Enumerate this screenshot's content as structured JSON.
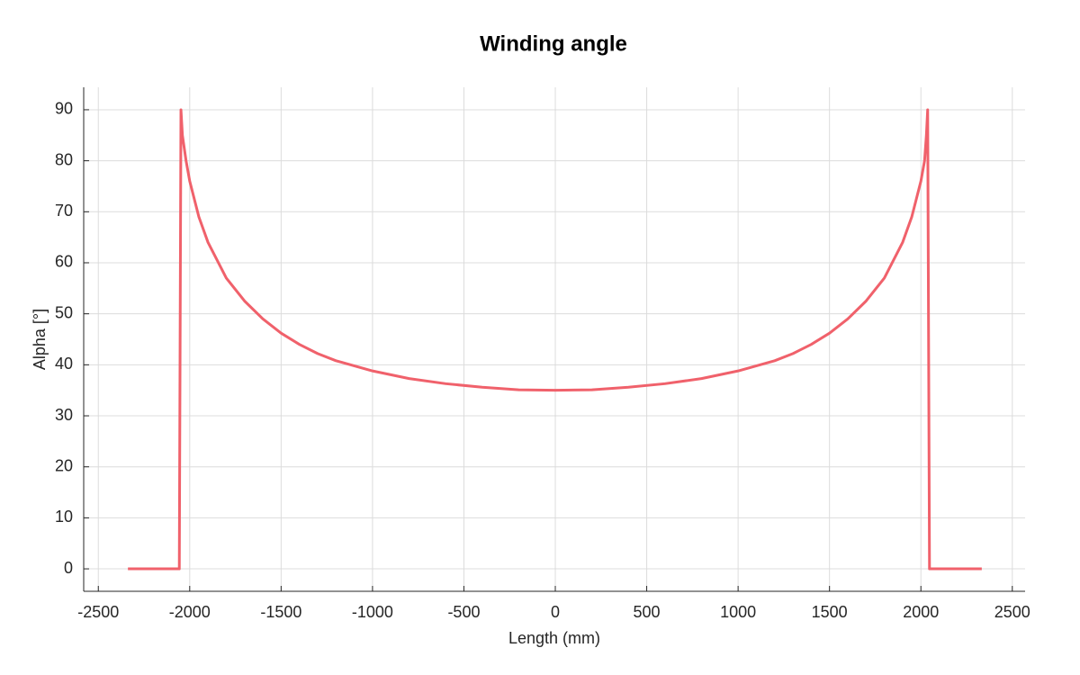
{
  "chart_data": {
    "type": "line",
    "title": "Winding angle",
    "x_label": "Length (mm)",
    "y_label": "Alpha [°]",
    "x": [
      -2338,
      -2057,
      -2048,
      -2040,
      -2020,
      -2000,
      -1950,
      -1900,
      -1800,
      -1700,
      -1600,
      -1500,
      -1400,
      -1300,
      -1200,
      -1000,
      -800,
      -600,
      -400,
      -200,
      0,
      200,
      400,
      600,
      800,
      1000,
      1200,
      1300,
      1400,
      1500,
      1600,
      1700,
      1800,
      1900,
      1950,
      2000,
      2020,
      2030,
      2037,
      2047,
      2333
    ],
    "series": [
      {
        "name": "Alpha",
        "color": "#f0616b",
        "values": [
          0,
          0,
          90,
          85,
          80,
          76,
          69,
          64,
          57,
          52.5,
          49,
          46.2,
          44,
          42.2,
          40.8,
          38.8,
          37.3,
          36.3,
          35.6,
          35.1,
          35,
          35.1,
          35.6,
          36.3,
          37.3,
          38.8,
          40.8,
          42.2,
          44,
          46.2,
          49,
          52.5,
          57,
          64,
          69,
          76,
          80,
          85,
          90,
          0,
          0
        ]
      }
    ],
    "xlim": [
      -2580,
      2570
    ],
    "ylim": [
      -4.4,
      94.4
    ],
    "xticks": [
      -2500,
      -2000,
      -1500,
      -1000,
      -500,
      0,
      500,
      1000,
      1500,
      2000,
      2500
    ],
    "yticks": [
      0,
      10,
      20,
      30,
      40,
      50,
      60,
      70,
      80,
      90
    ],
    "grid": true
  }
}
